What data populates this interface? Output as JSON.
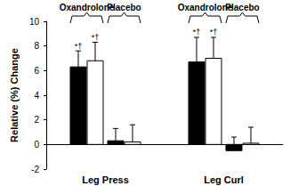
{
  "chart_data": {
    "type": "bar",
    "ylabel": "Relative (%) Change",
    "categories": [
      "Leg Press",
      "Leg Curl"
    ],
    "series": [
      {
        "color": "#000000",
        "values": [
          6.3,
          6.7
        ],
        "errors": [
          1.3,
          2.0
        ],
        "marks": [
          "*†",
          "*†"
        ]
      },
      {
        "color": "#ffffff",
        "values": [
          6.8,
          7.0
        ],
        "errors": [
          1.5,
          1.7
        ],
        "marks": [
          "*†",
          "*†"
        ]
      },
      {
        "color": "#000000",
        "values": [
          0.3,
          -0.5
        ],
        "errors": [
          1.0,
          1.1
        ],
        "marks": [
          null,
          null
        ]
      },
      {
        "color": "#ffffff",
        "values": [
          0.2,
          0.1
        ],
        "errors": [
          1.4,
          1.3
        ],
        "marks": [
          null,
          null
        ]
      }
    ],
    "groups": [
      {
        "label": "Oxandrolone",
        "series": [
          0,
          1
        ]
      },
      {
        "label": "Placebo",
        "series": [
          2,
          3
        ]
      }
    ],
    "ylim": [
      -2,
      10
    ],
    "yticks": [
      -2,
      0,
      2,
      4,
      6,
      8,
      10
    ],
    "grid": false
  }
}
